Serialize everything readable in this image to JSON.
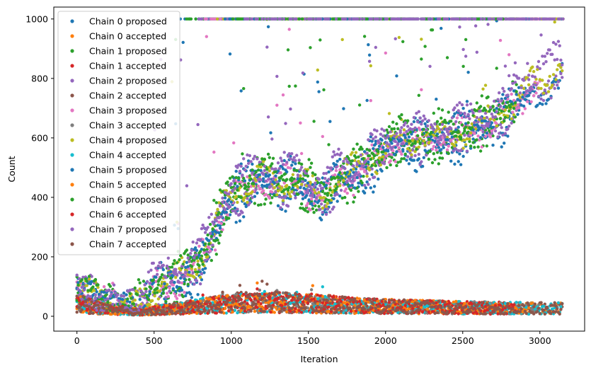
{
  "chart_data": {
    "type": "scatter",
    "xlabel": "Iteration",
    "ylabel": "Count",
    "xlim": [
      -150,
      3290
    ],
    "ylim": [
      -50,
      1040
    ],
    "xticks": [
      0,
      500,
      1000,
      1500,
      2000,
      2500,
      3000
    ],
    "yticks": [
      0,
      200,
      400,
      600,
      800,
      1000
    ],
    "grid": false,
    "legend_position": "top-left",
    "iterations_max": 3150,
    "series": [
      {
        "name": "Chain 0 proposed",
        "color": "#1f77b4",
        "kind": "proposed",
        "end": 3150
      },
      {
        "name": "Chain 0 accepted",
        "color": "#ff7f0e",
        "kind": "accepted",
        "end": 3150
      },
      {
        "name": "Chain 1 proposed",
        "color": "#2ca02c",
        "kind": "proposed",
        "end": 2850
      },
      {
        "name": "Chain 1 accepted",
        "color": "#d62728",
        "kind": "accepted",
        "end": 2850
      },
      {
        "name": "Chain 2 proposed",
        "color": "#9467bd",
        "kind": "proposed",
        "end": 3150
      },
      {
        "name": "Chain 2 accepted",
        "color": "#8c564b",
        "kind": "accepted",
        "end": 3150
      },
      {
        "name": "Chain 3 proposed",
        "color": "#e377c2",
        "kind": "proposed",
        "end": 3000
      },
      {
        "name": "Chain 3 accepted",
        "color": "#7f7f7f",
        "kind": "accepted",
        "end": 3000
      },
      {
        "name": "Chain 4 proposed",
        "color": "#bcbd22",
        "kind": "proposed",
        "end": 3150
      },
      {
        "name": "Chain 4 accepted",
        "color": "#17becf",
        "kind": "accepted",
        "end": 3150
      },
      {
        "name": "Chain 5 proposed",
        "color": "#1f77b4",
        "kind": "proposed",
        "end": 2950
      },
      {
        "name": "Chain 5 accepted",
        "color": "#ff7f0e",
        "kind": "accepted",
        "end": 2950
      },
      {
        "name": "Chain 6 proposed",
        "color": "#2ca02c",
        "kind": "proposed",
        "end": 2850
      },
      {
        "name": "Chain 6 accepted",
        "color": "#d62728",
        "kind": "accepted",
        "end": 2850
      },
      {
        "name": "Chain 7 proposed",
        "color": "#9467bd",
        "kind": "proposed",
        "end": 3150
      },
      {
        "name": "Chain 7 accepted",
        "color": "#8c564b",
        "kind": "accepted",
        "end": 3150
      }
    ],
    "proposed_trend": [
      [
        0,
        100
      ],
      [
        100,
        70
      ],
      [
        200,
        50
      ],
      [
        300,
        38
      ],
      [
        400,
        32
      ],
      [
        450,
        60
      ],
      [
        500,
        95
      ],
      [
        600,
        110
      ],
      [
        700,
        140
      ],
      [
        800,
        190
      ],
      [
        900,
        290
      ],
      [
        950,
        370
      ],
      [
        1000,
        410
      ],
      [
        1100,
        440
      ],
      [
        1200,
        470
      ],
      [
        1300,
        440
      ],
      [
        1400,
        460
      ],
      [
        1500,
        430
      ],
      [
        1600,
        400
      ],
      [
        1700,
        470
      ],
      [
        1800,
        480
      ],
      [
        1900,
        520
      ],
      [
        2000,
        560
      ],
      [
        2100,
        600
      ],
      [
        2200,
        590
      ],
      [
        2300,
        600
      ],
      [
        2400,
        610
      ],
      [
        2500,
        620
      ],
      [
        2600,
        640
      ],
      [
        2700,
        660
      ],
      [
        2800,
        700
      ],
      [
        2900,
        750
      ],
      [
        3000,
        800
      ],
      [
        3150,
        830
      ]
    ],
    "accepted_trend": [
      [
        0,
        45
      ],
      [
        200,
        25
      ],
      [
        400,
        15
      ],
      [
        600,
        25
      ],
      [
        800,
        35
      ],
      [
        1000,
        45
      ],
      [
        1250,
        50
      ],
      [
        1500,
        45
      ],
      [
        2000,
        35
      ],
      [
        2500,
        30
      ],
      [
        3000,
        28
      ],
      [
        3150,
        28
      ]
    ],
    "saturation_value": 1000
  }
}
